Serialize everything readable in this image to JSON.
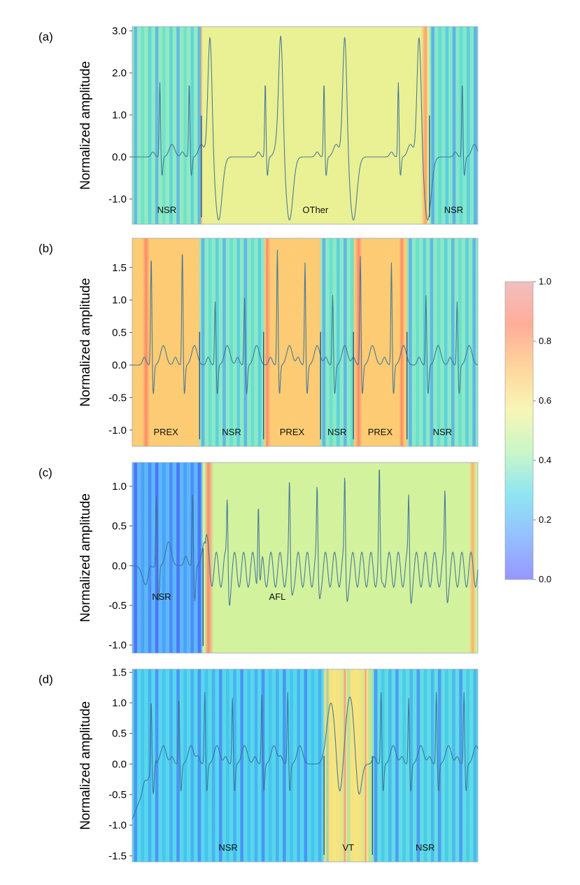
{
  "colorbar": {
    "min": 0.0,
    "max": 1.0,
    "ticks": [
      "0.0",
      "0.2",
      "0.4",
      "0.6",
      "0.8",
      "1.0"
    ],
    "tick_values": [
      0.0,
      0.2,
      0.4,
      0.6,
      0.8,
      1.0
    ],
    "colormap": [
      "#3f3fff",
      "#3d8bff",
      "#33d1e6",
      "#9ef09a",
      "#f2ee78",
      "#ffb24a",
      "#ff6a45",
      "#e58a8a"
    ]
  },
  "chart_data": [
    {
      "panel": "(a)",
      "type": "line",
      "ylabel": "Normalized amplitude",
      "ylim": [
        -1.6,
        3.1
      ],
      "yticks": [
        3.0,
        2.0,
        1.0,
        0.0,
        -1.0
      ],
      "ytick_labels": [
        "3.0",
        "2.0",
        "1.0",
        "0.0",
        "-1.0"
      ],
      "xlim": [
        0,
        1
      ],
      "segments": [
        {
          "label": "NSR",
          "start": 0.0,
          "end": 0.2,
          "attention": 0.38,
          "striped": true
        },
        {
          "label": "OTher",
          "start": 0.2,
          "end": 0.86,
          "attention": 0.55,
          "striped": false
        },
        {
          "label": "NSR",
          "start": 0.86,
          "end": 1.0,
          "attention": 0.36,
          "striped": true
        }
      ],
      "hotspots": [
        {
          "at": 0.2,
          "width": 0.012,
          "attention": 0.75
        },
        {
          "at": 0.85,
          "width": 0.03,
          "attention": 0.8
        }
      ],
      "beats": [
        {
          "t": 0.08,
          "amp": 1.8,
          "kind": "nsr"
        },
        {
          "t": 0.165,
          "amp": 1.8,
          "kind": "nsr"
        },
        {
          "t": 0.225,
          "amp": 2.9,
          "kind": "wide"
        },
        {
          "t": 0.385,
          "amp": 1.8,
          "kind": "nsr"
        },
        {
          "t": 0.43,
          "amp": 2.8,
          "kind": "wide"
        },
        {
          "t": 0.555,
          "amp": 1.8,
          "kind": "nsr"
        },
        {
          "t": 0.615,
          "amp": 2.9,
          "kind": "wide"
        },
        {
          "t": 0.77,
          "amp": 1.8,
          "kind": "nsr"
        },
        {
          "t": 0.83,
          "amp": 2.9,
          "kind": "wide"
        },
        {
          "t": 0.955,
          "amp": 1.8,
          "kind": "nsr"
        }
      ]
    },
    {
      "panel": "(b)",
      "type": "line",
      "ylabel": "Normalized amplitude",
      "ylim": [
        -1.25,
        1.95
      ],
      "yticks": [
        1.5,
        1.0,
        0.5,
        0.0,
        -0.5,
        -1.0
      ],
      "ytick_labels": [
        "1.5",
        "1.0",
        "0.5",
        "0.0",
        "-0.5",
        "-1.0"
      ],
      "xlim": [
        0,
        1
      ],
      "segments": [
        {
          "label": "PREX",
          "start": 0.0,
          "end": 0.195,
          "attention": 0.68,
          "striped": false
        },
        {
          "label": "NSR",
          "start": 0.195,
          "end": 0.38,
          "attention": 0.37,
          "striped": true
        },
        {
          "label": "PREX",
          "start": 0.38,
          "end": 0.545,
          "attention": 0.68,
          "striped": false
        },
        {
          "label": "NSR",
          "start": 0.545,
          "end": 0.64,
          "attention": 0.37,
          "striped": true
        },
        {
          "label": "PREX",
          "start": 0.64,
          "end": 0.795,
          "attention": 0.68,
          "striped": false
        },
        {
          "label": "NSR",
          "start": 0.795,
          "end": 1.0,
          "attention": 0.37,
          "striped": true
        }
      ],
      "hotspots": [
        {
          "at": 0.04,
          "width": 0.02,
          "attention": 0.85
        },
        {
          "at": 0.39,
          "width": 0.02,
          "attention": 0.88
        },
        {
          "at": 0.655,
          "width": 0.02,
          "attention": 0.88
        },
        {
          "at": 0.78,
          "width": 0.015,
          "attention": 0.85
        }
      ],
      "beats": [
        {
          "t": 0.055,
          "amp": 1.7,
          "kind": "nsr"
        },
        {
          "t": 0.145,
          "amp": 1.8,
          "kind": "nsr"
        },
        {
          "t": 0.24,
          "amp": 1.0,
          "kind": "nsr"
        },
        {
          "t": 0.325,
          "amp": 1.1,
          "kind": "nsr"
        },
        {
          "t": 0.42,
          "amp": 1.8,
          "kind": "nsr"
        },
        {
          "t": 0.5,
          "amp": 1.6,
          "kind": "nsr"
        },
        {
          "t": 0.58,
          "amp": 1.1,
          "kind": "nsr"
        },
        {
          "t": 0.66,
          "amp": 1.7,
          "kind": "nsr"
        },
        {
          "t": 0.75,
          "amp": 1.6,
          "kind": "nsr"
        },
        {
          "t": 0.85,
          "amp": 1.1,
          "kind": "nsr"
        },
        {
          "t": 0.94,
          "amp": 1.0,
          "kind": "nsr"
        }
      ]
    },
    {
      "panel": "(c)",
      "type": "line",
      "ylabel": "Normalized amplitude",
      "ylim": [
        -1.1,
        1.3
      ],
      "yticks": [
        1.0,
        0.5,
        0.0,
        -0.5,
        -1.0
      ],
      "ytick_labels": [
        "1.0",
        "0.5",
        "0.0",
        "-0.5",
        "-1.0"
      ],
      "xlim": [
        0,
        1
      ],
      "segments": [
        {
          "label": "NSR",
          "start": 0.0,
          "end": 0.205,
          "attention": 0.2,
          "striped": true
        },
        {
          "label": "AFL",
          "start": 0.205,
          "end": 1.0,
          "attention": 0.5,
          "striped": false
        }
      ],
      "hotspots": [
        {
          "at": 0.22,
          "width": 0.03,
          "attention": 0.88
        },
        {
          "at": 0.985,
          "width": 0.02,
          "attention": 0.75
        }
      ],
      "beats": [
        {
          "t": 0.07,
          "amp": 0.9,
          "kind": "nsr"
        },
        {
          "t": 0.175,
          "amp": 0.95,
          "kind": "nsr"
        },
        {
          "t": 0.275,
          "amp": 0.85,
          "kind": "flutter"
        },
        {
          "t": 0.365,
          "amp": 1.0,
          "kind": "flutter"
        },
        {
          "t": 0.455,
          "amp": 0.95,
          "kind": "flutter"
        },
        {
          "t": 0.535,
          "amp": 0.9,
          "kind": "flutter"
        },
        {
          "t": 0.615,
          "amp": 1.05,
          "kind": "flutter"
        },
        {
          "t": 0.715,
          "amp": 1.15,
          "kind": "flutter"
        },
        {
          "t": 0.8,
          "amp": 0.85,
          "kind": "flutter"
        },
        {
          "t": 0.905,
          "amp": 0.9,
          "kind": "flutter"
        }
      ]
    },
    {
      "panel": "(d)",
      "type": "line",
      "ylabel": "Normalized amplitude",
      "ylim": [
        -1.6,
        1.55
      ],
      "yticks": [
        1.5,
        1.0,
        0.5,
        0.0,
        -0.5,
        -1.0,
        -1.5
      ],
      "ytick_labels": [
        "1.5",
        "1.0",
        "0.5",
        "0.0",
        "-0.5",
        "-1.0",
        "-1.5"
      ],
      "xlim": [
        0,
        1
      ],
      "segments": [
        {
          "label": "NSR",
          "start": 0.0,
          "end": 0.555,
          "attention": 0.28,
          "striped": true
        },
        {
          "label": "VT",
          "start": 0.555,
          "end": 0.695,
          "attention": 0.62,
          "striped": true
        },
        {
          "label": "NSR",
          "start": 0.695,
          "end": 1.0,
          "attention": 0.3,
          "striped": true
        }
      ],
      "hotspots": [
        {
          "at": 0.565,
          "width": 0.008,
          "attention": 0.95
        },
        {
          "at": 0.615,
          "width": 0.01,
          "attention": 0.95
        },
        {
          "at": 0.675,
          "width": 0.008,
          "attention": 0.95
        }
      ],
      "beats": [
        {
          "t": 0.055,
          "amp": 1.2,
          "kind": "nsr"
        },
        {
          "t": 0.135,
          "amp": 1.1,
          "kind": "nsr"
        },
        {
          "t": 0.21,
          "amp": 1.2,
          "kind": "nsr"
        },
        {
          "t": 0.29,
          "amp": 1.1,
          "kind": "nsr"
        },
        {
          "t": 0.375,
          "amp": 1.2,
          "kind": "nsr"
        },
        {
          "t": 0.45,
          "amp": 1.2,
          "kind": "nsr"
        },
        {
          "t": 0.575,
          "amp": 1.0,
          "kind": "vt"
        },
        {
          "t": 0.63,
          "amp": 1.1,
          "kind": "vt"
        },
        {
          "t": 0.72,
          "amp": 1.2,
          "kind": "nsr"
        },
        {
          "t": 0.8,
          "amp": 1.1,
          "kind": "nsr"
        },
        {
          "t": 0.88,
          "amp": 1.2,
          "kind": "nsr"
        },
        {
          "t": 0.96,
          "amp": 1.2,
          "kind": "nsr"
        }
      ]
    }
  ]
}
